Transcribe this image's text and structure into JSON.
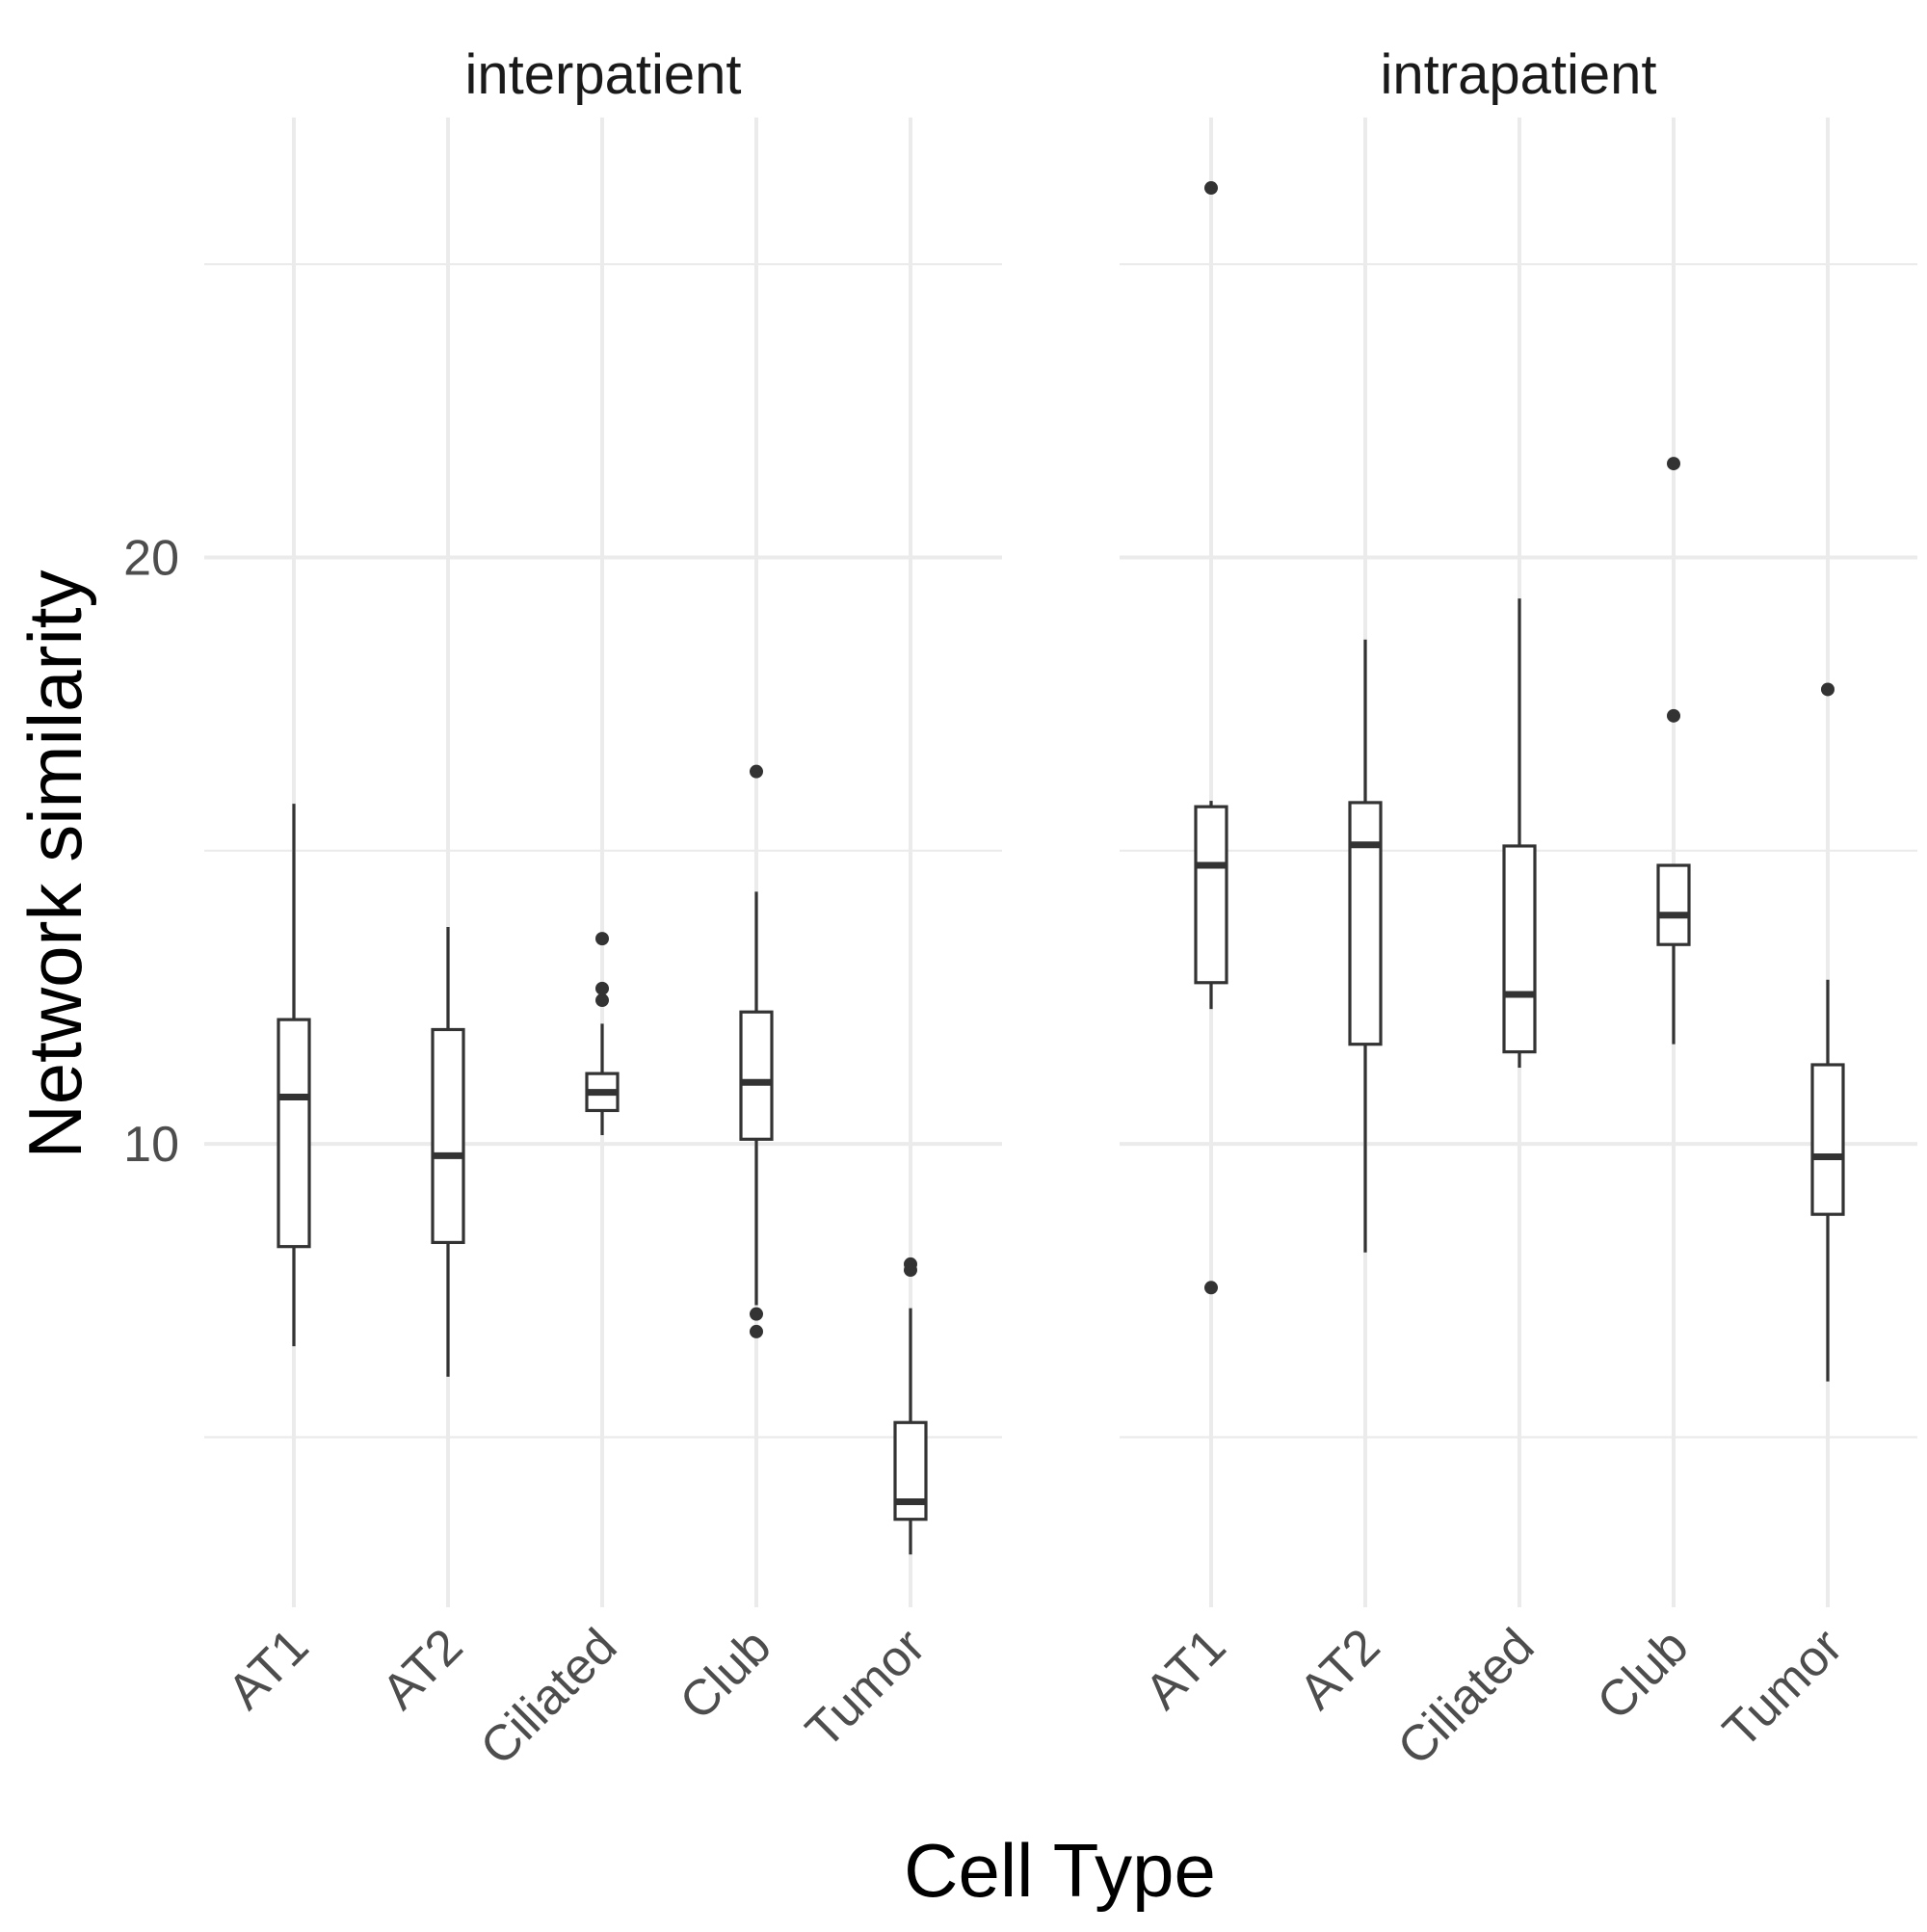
{
  "chart_data": {
    "type": "boxplot",
    "xlabel": "Cell Type",
    "ylabel": "Network similarity",
    "y_ticks": [
      10,
      20
    ],
    "y_minor_ticks": [
      5,
      15,
      25
    ],
    "ylim": [
      2.1,
      27.5
    ],
    "grid": true,
    "facets": [
      {
        "label": "interpatient",
        "categories": [
          "AT1",
          "AT2",
          "Ciliated",
          "Club",
          "Tumor"
        ],
        "boxes": [
          {
            "category": "AT1",
            "whisker_low": 6.55,
            "q1": 8.25,
            "median": 10.8,
            "q3": 12.12,
            "whisker_high": 15.8,
            "outliers": []
          },
          {
            "category": "AT2",
            "whisker_low": 6.03,
            "q1": 8.32,
            "median": 9.8,
            "q3": 11.95,
            "whisker_high": 13.7,
            "outliers": []
          },
          {
            "category": "Ciliated",
            "whisker_low": 10.15,
            "q1": 10.57,
            "median": 10.88,
            "q3": 11.2,
            "whisker_high": 12.05,
            "outliers": [
              13.5,
              12.65,
              12.45
            ]
          },
          {
            "category": "Club",
            "whisker_low": 7.25,
            "q1": 10.08,
            "median": 11.05,
            "q3": 12.25,
            "whisker_high": 14.3,
            "outliers": [
              16.35,
              7.1,
              6.8
            ]
          },
          {
            "category": "Tumor",
            "whisker_low": 3.0,
            "q1": 3.6,
            "median": 3.9,
            "q3": 5.25,
            "whisker_high": 7.2,
            "outliers": [
              7.95,
              7.85
            ]
          }
        ]
      },
      {
        "label": "intrapatient",
        "categories": [
          "AT1",
          "AT2",
          "Ciliated",
          "Club",
          "Tumor"
        ],
        "boxes": [
          {
            "category": "AT1",
            "whisker_low": 12.3,
            "q1": 12.75,
            "median": 14.75,
            "q3": 15.75,
            "whisker_high": 15.85,
            "outliers": [
              26.3,
              7.55
            ]
          },
          {
            "category": "AT2",
            "whisker_low": 8.15,
            "q1": 11.7,
            "median": 15.1,
            "q3": 15.82,
            "whisker_high": 18.6,
            "outliers": []
          },
          {
            "category": "Ciliated",
            "whisker_low": 11.3,
            "q1": 11.57,
            "median": 12.55,
            "q3": 15.08,
            "whisker_high": 19.3,
            "outliers": []
          },
          {
            "category": "Club",
            "whisker_low": 11.7,
            "q1": 13.4,
            "median": 13.9,
            "q3": 14.75,
            "whisker_high": 14.75,
            "outliers": [
              21.6,
              17.3
            ]
          },
          {
            "category": "Tumor",
            "whisker_low": 5.95,
            "q1": 8.8,
            "median": 9.78,
            "q3": 11.35,
            "whisker_high": 12.8,
            "outliers": [
              17.75
            ]
          }
        ]
      }
    ]
  }
}
